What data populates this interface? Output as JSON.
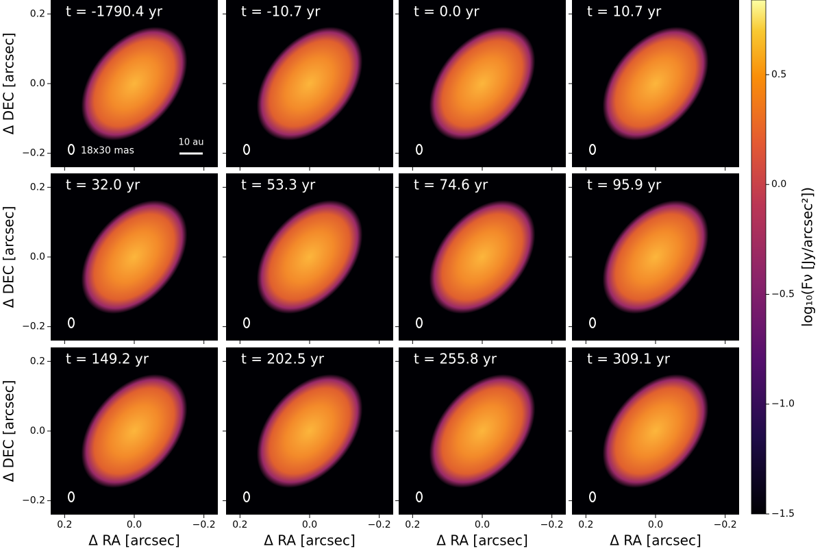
{
  "chart_data": {
    "type": "image-grid",
    "panels": [
      {
        "title": "t = -1790.4 yr"
      },
      {
        "title": "t = -10.7 yr"
      },
      {
        "title": "t = 0.0 yr"
      },
      {
        "title": "t = 10.7 yr"
      },
      {
        "title": "t = 32.0 yr"
      },
      {
        "title": "t = 53.3 yr"
      },
      {
        "title": "t = 74.6 yr"
      },
      {
        "title": "t = 95.9 yr"
      },
      {
        "title": "t = 149.2 yr"
      },
      {
        "title": "t = 202.5 yr"
      },
      {
        "title": "t = 255.8 yr"
      },
      {
        "title": "t = 309.1 yr"
      }
    ],
    "xlabel": "Δ RA [arcsec]",
    "ylabel": "Δ DEC [arcsec]",
    "xlim": [
      0.24,
      -0.24
    ],
    "ylim": [
      -0.24,
      0.24
    ],
    "xticks": [
      0.2,
      {
        "value": 0,
        "label": "0.0"
      },
      {
        "value": -0.2,
        "label": "−0.2"
      }
    ],
    "yticks": [
      {
        "value": -0.2,
        "label": "−0.2"
      },
      {
        "value": 0,
        "label": "0.0"
      },
      0.2
    ],
    "beam_label": "18x30 mas",
    "scalebar_label": "10 au",
    "colorbar": {
      "label": "log₁₀(Fν [Jy/arcsec²])",
      "lim": [
        -1.5,
        0.84
      ],
      "ticks": [
        {
          "value": -1.5,
          "label": "−1.5"
        },
        {
          "value": -1,
          "label": "−1.0"
        },
        {
          "value": -0.5,
          "label": "−0.5"
        },
        {
          "value": 0,
          "label": "0.0"
        },
        0.5
      ]
    }
  }
}
